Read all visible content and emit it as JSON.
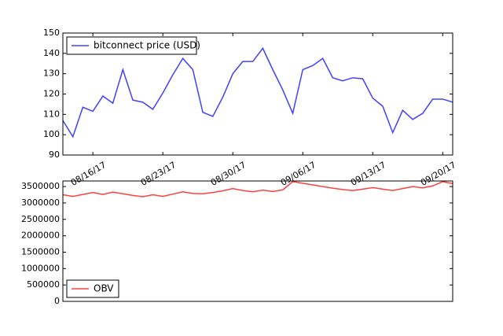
{
  "chart_data": [
    {
      "type": "line",
      "x": [
        "2017-08-13",
        "2017-08-14",
        "2017-08-15",
        "2017-08-16",
        "2017-08-17",
        "2017-08-18",
        "2017-08-19",
        "2017-08-20",
        "2017-08-21",
        "2017-08-22",
        "2017-08-23",
        "2017-08-24",
        "2017-08-25",
        "2017-08-26",
        "2017-08-27",
        "2017-08-28",
        "2017-08-29",
        "2017-08-30",
        "2017-08-31",
        "2017-09-01",
        "2017-09-02",
        "2017-09-03",
        "2017-09-04",
        "2017-09-05",
        "2017-09-06",
        "2017-09-07",
        "2017-09-08",
        "2017-09-09",
        "2017-09-10",
        "2017-09-11",
        "2017-09-12",
        "2017-09-13",
        "2017-09-14",
        "2017-09-15",
        "2017-09-16",
        "2017-09-17",
        "2017-09-18",
        "2017-09-19",
        "2017-09-20",
        "2017-09-21"
      ],
      "series": [
        {
          "name": "bitconnect price (USD)",
          "color": "#4040ff",
          "values": [
            107,
            99,
            113.5,
            111.5,
            119,
            115.5,
            132,
            117,
            116,
            112.5,
            120.5,
            129.5,
            137.5,
            132,
            111,
            109,
            118.5,
            130,
            136,
            136,
            142.5,
            132,
            122,
            110.5,
            132,
            134,
            137.5,
            128,
            126.5,
            128,
            127.5,
            118,
            114,
            101,
            112,
            107.5,
            110.5,
            117.5,
            117.5,
            116
          ]
        }
      ],
      "xlim": [
        "2017-08-13",
        "2017-09-21"
      ],
      "xticks": [
        {
          "value": "2017-08-16",
          "label": "08/16/17"
        },
        {
          "value": "2017-08-23",
          "label": "08/23/17"
        },
        {
          "value": "2017-08-30",
          "label": "08/30/17"
        },
        {
          "value": "2017-09-06",
          "label": "09/06/17"
        },
        {
          "value": "2017-09-13",
          "label": "09/13/17"
        },
        {
          "value": "2017-09-20",
          "label": "09/20/17"
        }
      ],
      "ylim": [
        90,
        150
      ],
      "yticks": [
        90,
        100,
        110,
        120,
        130,
        140,
        150
      ],
      "legend": "upper-left"
    },
    {
      "type": "line",
      "x": [
        "2017-08-13",
        "2017-08-14",
        "2017-08-15",
        "2017-08-16",
        "2017-08-17",
        "2017-08-18",
        "2017-08-19",
        "2017-08-20",
        "2017-08-21",
        "2017-08-22",
        "2017-08-23",
        "2017-08-24",
        "2017-08-25",
        "2017-08-26",
        "2017-08-27",
        "2017-08-28",
        "2017-08-29",
        "2017-08-30",
        "2017-08-31",
        "2017-09-01",
        "2017-09-02",
        "2017-09-03",
        "2017-09-04",
        "2017-09-05",
        "2017-09-06",
        "2017-09-07",
        "2017-09-08",
        "2017-09-09",
        "2017-09-10",
        "2017-09-11",
        "2017-09-12",
        "2017-09-13",
        "2017-09-14",
        "2017-09-15",
        "2017-09-16",
        "2017-09-17",
        "2017-09-18",
        "2017-09-19",
        "2017-09-20",
        "2017-09-21"
      ],
      "series": [
        {
          "name": "OBV",
          "color": "#ff4040",
          "values": [
            3250000,
            3200000,
            3260000,
            3320000,
            3260000,
            3330000,
            3280000,
            3230000,
            3190000,
            3250000,
            3200000,
            3270000,
            3340000,
            3290000,
            3280000,
            3320000,
            3370000,
            3440000,
            3380000,
            3340000,
            3390000,
            3350000,
            3400000,
            3650000,
            3600000,
            3550000,
            3500000,
            3450000,
            3410000,
            3380000,
            3420000,
            3470000,
            3420000,
            3380000,
            3440000,
            3500000,
            3460000,
            3520000,
            3650000,
            3590000
          ]
        }
      ],
      "xlim": [
        "2017-08-13",
        "2017-09-21"
      ],
      "ylim": [
        0,
        3670000
      ],
      "yticks": [
        0,
        500000,
        1000000,
        1500000,
        2000000,
        2500000,
        3000000,
        3500000
      ],
      "legend": "lower-left"
    }
  ]
}
